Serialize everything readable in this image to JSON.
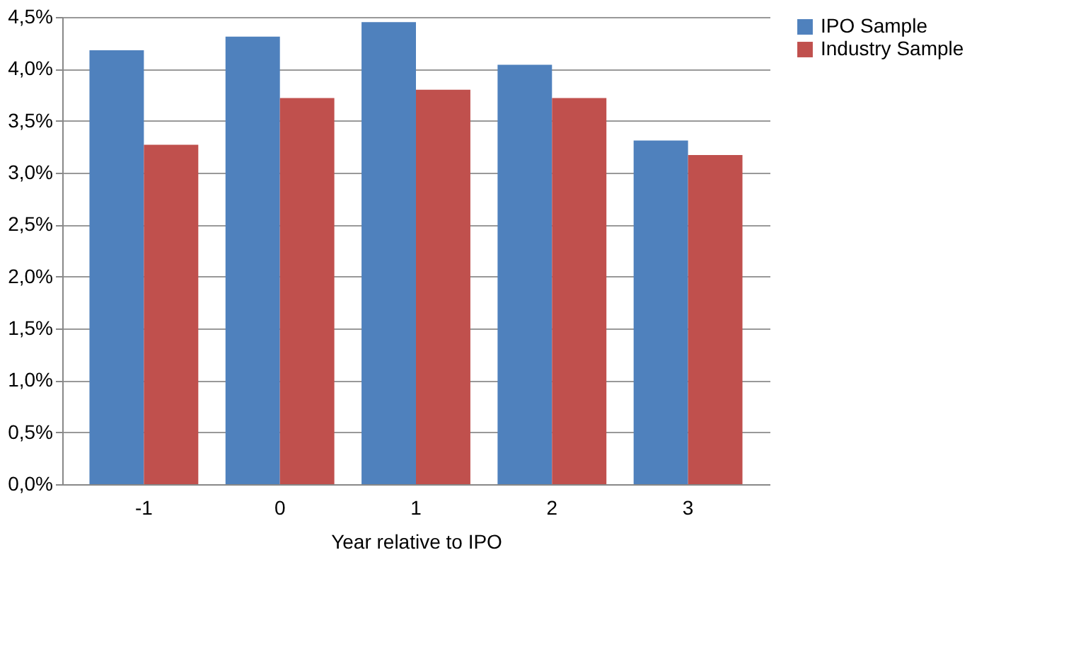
{
  "chart_data": {
    "type": "bar",
    "xlabel": "Year relative to IPO",
    "categories": [
      "-1",
      "0",
      "1",
      "2",
      "3"
    ],
    "series": [
      {
        "name": "IPO Sample",
        "color": "#4f81bd",
        "values": [
          4.18,
          4.31,
          4.45,
          4.04,
          3.31
        ]
      },
      {
        "name": "Industry Sample",
        "color": "#c0504d",
        "values": [
          3.27,
          3.72,
          3.8,
          3.72,
          3.17
        ]
      }
    ],
    "ylim": [
      0,
      4.5
    ],
    "yticks": [
      {
        "value": 0,
        "label": "0,0%"
      },
      {
        "value": 0.5,
        "label": "0,5%"
      },
      {
        "value": 1,
        "label": "1,0%"
      },
      {
        "value": 1.5,
        "label": "1,5%"
      },
      {
        "value": 2,
        "label": "2,0%"
      },
      {
        "value": 2.5,
        "label": "2,5%"
      },
      {
        "value": 3,
        "label": "3,0%"
      },
      {
        "value": 3.5,
        "label": "3,5%"
      },
      {
        "value": 4,
        "label": "4,0%"
      },
      {
        "value": 4.5,
        "label": "4,5%"
      }
    ],
    "grid": "y",
    "legend": "right"
  }
}
